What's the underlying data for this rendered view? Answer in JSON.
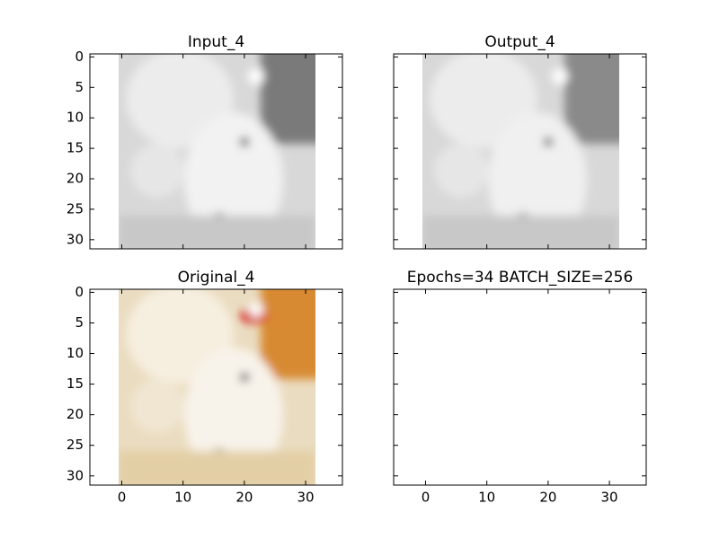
{
  "charts": [
    {
      "type": "image",
      "title": "Input_4",
      "xlim": [
        -5.2,
        36
      ],
      "ylim": [
        31.5,
        -0.5
      ],
      "yticks": [
        0,
        5,
        10,
        15,
        20,
        25,
        30
      ]
    },
    {
      "type": "image",
      "title": "Output_4",
      "xlim": [
        -5.2,
        36
      ],
      "ylim": [
        31.5,
        -0.5
      ]
    },
    {
      "type": "image",
      "title": "Original_4",
      "xlim": [
        -5.2,
        36
      ],
      "ylim": [
        31.5,
        -0.5
      ],
      "xticks": [
        0,
        10,
        20,
        30
      ],
      "yticks": [
        0,
        5,
        10,
        15,
        20,
        25,
        30
      ]
    },
    {
      "type": "blank",
      "title": "Epochs=34 BATCH_SIZE=256",
      "xlim": [
        -5.2,
        36
      ],
      "ylim": [
        31.5,
        -0.5
      ],
      "xticks": [
        0,
        10,
        20,
        30
      ]
    }
  ]
}
